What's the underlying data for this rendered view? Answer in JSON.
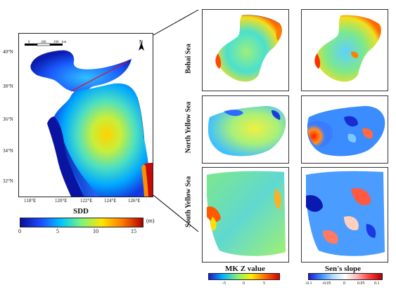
{
  "main_map": {
    "lat_ticks": [
      "40°N",
      "38°N",
      "36°N",
      "34°N",
      "32°N"
    ],
    "lon_ticks": [
      "118°E",
      "120°E",
      "122°E",
      "124°E",
      "126°E"
    ],
    "scale_bar": {
      "tick0": "0",
      "tick1": "100",
      "tick2": "200",
      "unit": "km"
    },
    "north_label": "N",
    "colorbar": {
      "title": "SDD",
      "unit": "(m)",
      "ticks": [
        "0",
        "5",
        "10",
        "15"
      ],
      "colors": [
        "#08109a",
        "#1b4bff",
        "#00c4ff",
        "#7cf57a",
        "#ffe500",
        "#ff7a00",
        "#b00000"
      ]
    }
  },
  "rows": [
    {
      "label": "Bohai Sea"
    },
    {
      "label": "North Yellow Sea"
    },
    {
      "label": "South Yellow Sea"
    }
  ],
  "mk_colorbar": {
    "title": "MK Z value",
    "ticks": [
      "-5",
      "0",
      "5"
    ],
    "colors": [
      "#1a1ad0",
      "#00b4ff",
      "#7ff07a",
      "#ffee00",
      "#ff6a00",
      "#d40000"
    ]
  },
  "sen_colorbar": {
    "title": "Sen's slope",
    "ticks": [
      "-0.1",
      "-0.05",
      "0",
      "0.05",
      "0.1"
    ],
    "colors": [
      "#1a1ad0",
      "#3a8cff",
      "#b0dcff",
      "#ffffff",
      "#ffb0b0",
      "#ff3a3a",
      "#b00000"
    ]
  }
}
